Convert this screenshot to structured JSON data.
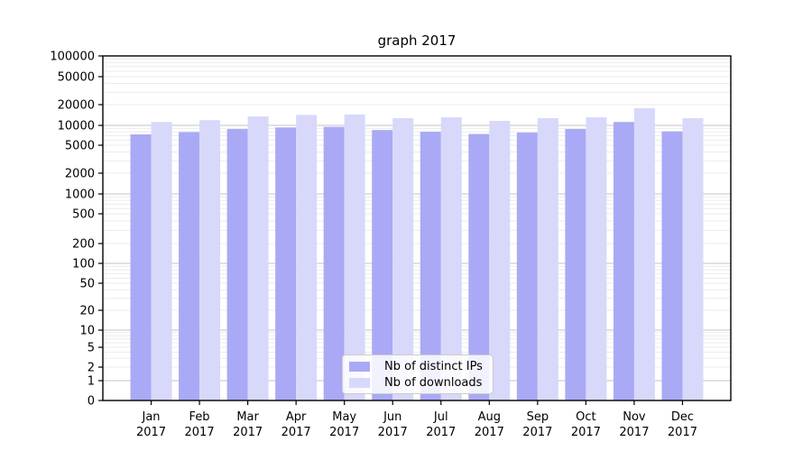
{
  "chart_data": {
    "type": "bar",
    "title": "graph 2017",
    "categories": [
      "Jan",
      "Feb",
      "Mar",
      "Apr",
      "May",
      "Jun",
      "Jul",
      "Aug",
      "Sep",
      "Oct",
      "Nov",
      "Dec"
    ],
    "category_year": "2017",
    "series": [
      {
        "name": "Nb of distinct IPs",
        "color": "#a9a9f6",
        "values": [
          7300,
          7900,
          8800,
          9300,
          9500,
          8500,
          8000,
          7400,
          7800,
          8800,
          11200,
          8100
        ]
      },
      {
        "name": "Nb of downloads",
        "color": "#d8d8fb",
        "values": [
          11200,
          11900,
          13500,
          14200,
          14400,
          12700,
          13100,
          11600,
          12700,
          13100,
          17700,
          12700
        ]
      }
    ],
    "y_axis": {
      "scale": "symlog",
      "ticks": [
        0,
        1,
        2,
        5,
        10,
        20,
        50,
        100,
        200,
        500,
        1000,
        2000,
        5000,
        10000,
        20000,
        50000,
        100000
      ],
      "range": [
        0,
        100000
      ],
      "grid": true
    },
    "x_axis": {
      "tick_label_line2": "2017"
    },
    "legend": {
      "position": "lower-center",
      "entries": [
        "Nb of distinct IPs",
        "Nb of downloads"
      ]
    },
    "colors": {
      "axis": "#000000",
      "major_grid": "#c3c3c3",
      "minor_grid": "#ebebeb",
      "background": "#ffffff",
      "text": "#000000"
    }
  }
}
